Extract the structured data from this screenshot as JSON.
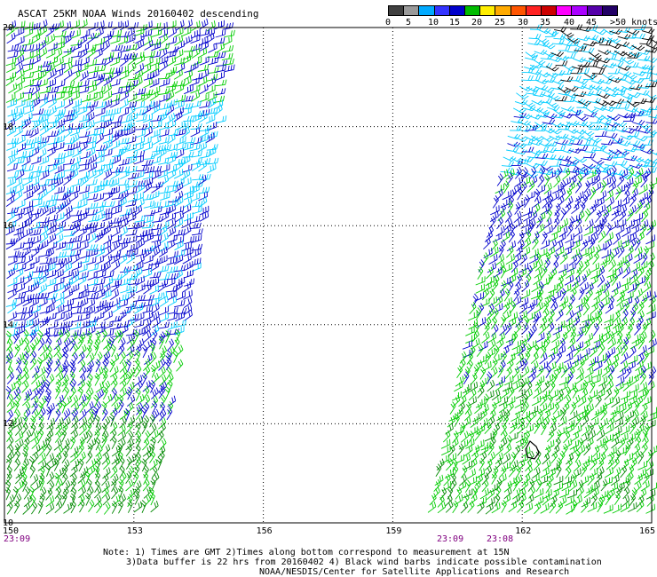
{
  "title": "ASCAT 25KM NOAA Winds 20160402 descending",
  "scale": {
    "colors": [
      "#404040",
      "#9a9a9a",
      "#00aaff",
      "#3333ff",
      "#0000cc",
      "#00bb00",
      "#ffee00",
      "#ffaa00",
      "#ff5500",
      "#ff2222",
      "#cc0000",
      "#ff00ff",
      "#aa00ff",
      "#5500aa",
      "#220066"
    ],
    "labels": [
      "0",
      "5",
      "10",
      "15",
      "20",
      "25",
      "30",
      "35",
      "40",
      "45",
      ">50 knots"
    ]
  },
  "map": {
    "lon_labels": [
      "150",
      "153",
      "156",
      "159",
      "162",
      "165"
    ],
    "lat_labels": [
      "20",
      "18",
      "16",
      "14",
      "12",
      "10"
    ],
    "lon_range": [
      150,
      165
    ],
    "lat_range": [
      10,
      20
    ],
    "times_left": [
      "23:09"
    ],
    "times_right": [
      "23:09",
      "23:08"
    ],
    "barb_colors": {
      "light": "#00ccff",
      "mid": "#0000cc",
      "green": "#00cc00",
      "dark_green": "#008800",
      "contam": "#000000"
    }
  },
  "notes": {
    "line1": "Note: 1) Times are GMT 2)Times along bottom correspond to measurement at 15N",
    "line2": "3)Data buffer is 22 hrs from 20160402 4) Black wind barbs indicate possible contamination",
    "line3": "NOAA/NESDIS/Center for Satellite Applications and Research"
  }
}
